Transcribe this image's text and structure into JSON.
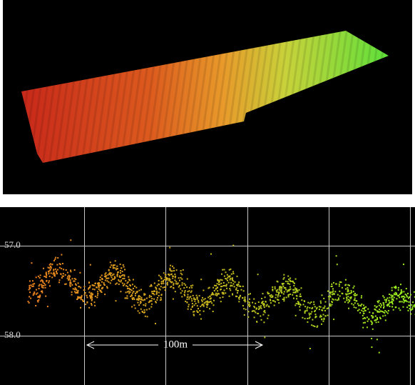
{
  "profile": {
    "y_labels": [
      "57.0",
      "58.0"
    ],
    "scale_label": "100m"
  }
}
